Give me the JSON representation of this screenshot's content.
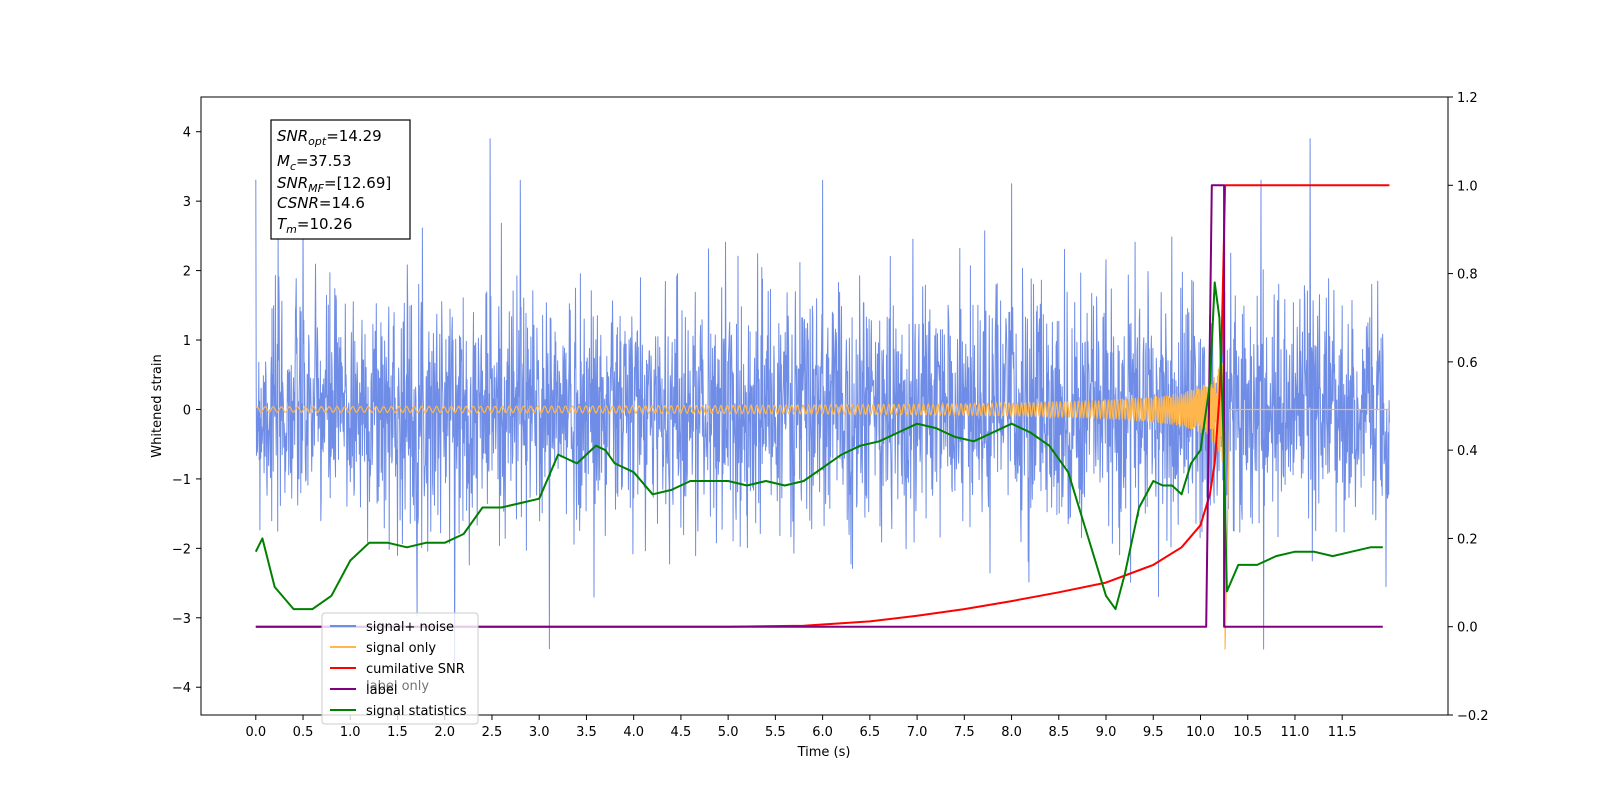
{
  "chart_data": {
    "type": "line",
    "xlabel": "Time (s)",
    "ylabel": "Whitened strain",
    "xlim": [
      -0.58,
      12.62
    ],
    "ylim": [
      -4.4,
      4.5
    ],
    "y2lim": [
      -0.2,
      1.2
    ],
    "x_ticks": [
      "0.0",
      "0.5",
      "1.0",
      "1.5",
      "2.0",
      "2.5",
      "3.0",
      "3.5",
      "4.0",
      "4.5",
      "5.0",
      "5.5",
      "6.0",
      "6.5",
      "7.0",
      "7.5",
      "8.0",
      "8.5",
      "9.0",
      "9.5",
      "10.0",
      "10.5",
      "11.0",
      "11.5"
    ],
    "y_ticks": [
      "4",
      "3",
      "2",
      "1",
      "0",
      "−1",
      "−2",
      "−3",
      "−4"
    ],
    "y2_ticks": [
      "1.2",
      "1.0",
      "0.8",
      "0.6",
      "0.4",
      "0.2",
      "0.0",
      "−0.2"
    ],
    "info_box": {
      "snr_opt": {
        "main": "SNR",
        "sub": "opt",
        "value": "=14.29"
      },
      "mc": {
        "main": "M",
        "sub": "c",
        "value": "=37.53"
      },
      "snr_mf": {
        "main": "SNR",
        "sub": "MF",
        "value": "=[12.69]"
      },
      "csnr": {
        "main": "CSNR",
        "sub": "",
        "value": "=14.6"
      },
      "tm": {
        "main": "T",
        "sub": "m",
        "value": "=10.26"
      }
    },
    "legend": {
      "placement": "lower-left",
      "entries": [
        "signal+ noise",
        "signal only",
        "cumilative SNR",
        "label",
        "signal statistics"
      ],
      "ghost_text": "label only"
    },
    "series": [
      {
        "name": "signal+ noise",
        "axis": "left",
        "color": "#6f8de6",
        "kind": "noise",
        "t_start": 0.0,
        "t_end": 12.0,
        "spread": 0.85,
        "max": 3.9,
        "min": -3.8
      },
      {
        "name": "signal only",
        "axis": "left",
        "color": "#ffb74d",
        "kind": "chirp",
        "t_start": 0.0,
        "t_end": 12.0,
        "t_merger": 10.26,
        "peak_amplitude": 1.1,
        "min": -3.45
      },
      {
        "name": "cumilative SNR",
        "axis": "right",
        "color": "#ff0000",
        "x": [
          0.0,
          5.0,
          5.8,
          6.5,
          7.0,
          7.5,
          8.0,
          8.5,
          9.0,
          9.5,
          9.8,
          10.0,
          10.1,
          10.15,
          10.2,
          10.22,
          10.24,
          10.26,
          12.0
        ],
        "y": [
          0.0,
          0.0,
          0.002,
          0.012,
          0.025,
          0.04,
          0.058,
          0.078,
          0.1,
          0.14,
          0.18,
          0.23,
          0.3,
          0.37,
          0.52,
          0.62,
          0.8,
          1.0,
          1.0
        ]
      },
      {
        "name": "label",
        "axis": "right",
        "color": "#800080",
        "x": [
          0.0,
          10.06,
          10.12,
          10.12,
          10.25,
          10.25,
          11.93
        ],
        "y": [
          0.0,
          0.0,
          1.0,
          1.0,
          1.0,
          0.0,
          0.0
        ]
      },
      {
        "name": "signal statistics",
        "axis": "right",
        "color": "#008000",
        "x": [
          0.0,
          0.07,
          0.2,
          0.4,
          0.6,
          0.8,
          1.0,
          1.2,
          1.4,
          1.6,
          1.8,
          2.0,
          2.2,
          2.4,
          2.6,
          2.8,
          3.0,
          3.2,
          3.4,
          3.5,
          3.6,
          3.7,
          3.8,
          4.0,
          4.2,
          4.4,
          4.6,
          4.8,
          5.0,
          5.2,
          5.4,
          5.6,
          5.8,
          6.0,
          6.2,
          6.4,
          6.6,
          6.8,
          7.0,
          7.2,
          7.4,
          7.6,
          7.8,
          8.0,
          8.2,
          8.4,
          8.6,
          8.8,
          9.0,
          9.1,
          9.2,
          9.35,
          9.5,
          9.6,
          9.7,
          9.8,
          9.9,
          10.0,
          10.1,
          10.15,
          10.2,
          10.24,
          10.28,
          10.4,
          10.6,
          10.8,
          11.0,
          11.2,
          11.4,
          11.6,
          11.8,
          11.93
        ],
        "y": [
          0.17,
          0.2,
          0.09,
          0.04,
          0.04,
          0.07,
          0.15,
          0.19,
          0.19,
          0.18,
          0.19,
          0.19,
          0.21,
          0.27,
          0.27,
          0.28,
          0.29,
          0.39,
          0.37,
          0.39,
          0.41,
          0.4,
          0.37,
          0.35,
          0.3,
          0.31,
          0.33,
          0.33,
          0.33,
          0.32,
          0.33,
          0.32,
          0.33,
          0.36,
          0.39,
          0.41,
          0.42,
          0.44,
          0.46,
          0.45,
          0.43,
          0.42,
          0.44,
          0.46,
          0.44,
          0.41,
          0.35,
          0.21,
          0.07,
          0.04,
          0.12,
          0.27,
          0.33,
          0.32,
          0.32,
          0.3,
          0.37,
          0.4,
          0.55,
          0.78,
          0.7,
          0.45,
          0.08,
          0.14,
          0.14,
          0.16,
          0.17,
          0.17,
          0.16,
          0.17,
          0.18,
          0.18
        ]
      }
    ]
  }
}
